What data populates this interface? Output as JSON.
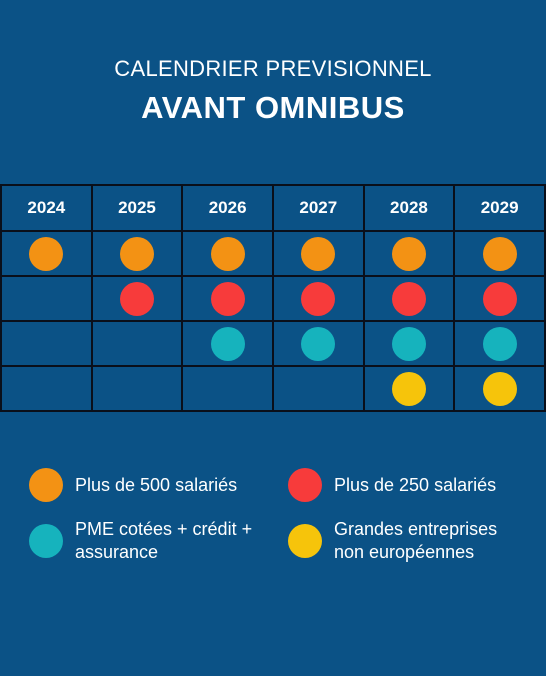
{
  "header": {
    "subtitle": "CALENDRIER PREVISIONNEL",
    "title": "AVANT OMNIBUS"
  },
  "colors": {
    "orange": "#f39214",
    "red": "#f73b3b",
    "teal": "#16b3bd",
    "yellow": "#f6c40b",
    "background": "#0b5286"
  },
  "years": [
    "2024",
    "2025",
    "2026",
    "2027",
    "2028",
    "2029"
  ],
  "rows": [
    {
      "color": "#f39214",
      "active": [
        true,
        true,
        true,
        true,
        true,
        true
      ]
    },
    {
      "color": "#f73b3b",
      "active": [
        false,
        true,
        true,
        true,
        true,
        true
      ]
    },
    {
      "color": "#16b3bd",
      "active": [
        false,
        false,
        true,
        true,
        true,
        true
      ]
    },
    {
      "color": "#f6c40b",
      "active": [
        false,
        false,
        false,
        false,
        true,
        true
      ]
    }
  ],
  "legend": [
    {
      "label": "Plus de 500 salariés",
      "color": "#f39214"
    },
    {
      "label": "Plus de 250 salariés",
      "color": "#f73b3b"
    },
    {
      "label": "PME cotées + crédit +\nassurance",
      "color": "#16b3bd"
    },
    {
      "label": "Grandes entreprises\nnon européennes",
      "color": "#f6c40b"
    }
  ]
}
